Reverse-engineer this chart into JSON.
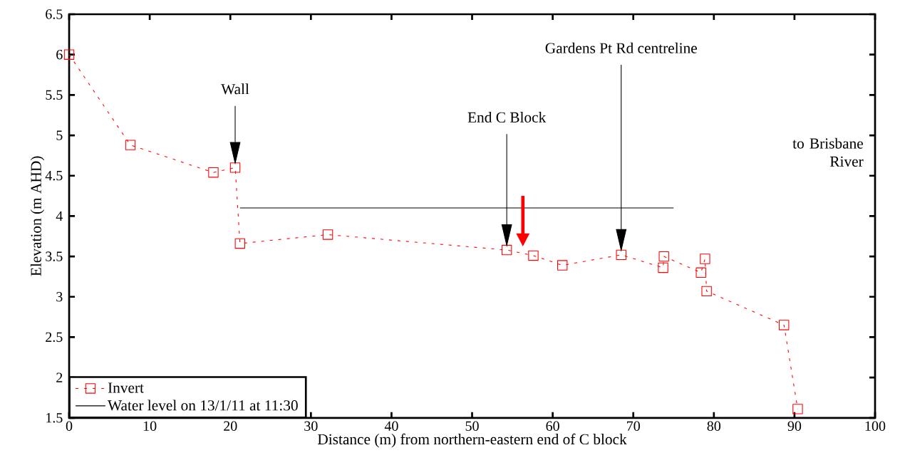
{
  "chart_data": {
    "type": "line",
    "xlabel": "Distance (m) from northern-eastern end of C block",
    "ylabel": "Elevation (m AHD)",
    "xlim": [
      0,
      100
    ],
    "ylim": [
      1.5,
      6.5
    ],
    "xticks": [
      0,
      10,
      20,
      30,
      40,
      50,
      60,
      70,
      80,
      90,
      100
    ],
    "yticks": [
      1.5,
      2,
      2.5,
      3,
      3.5,
      4,
      4.5,
      5,
      5.5,
      6,
      6.5
    ],
    "grid": false,
    "legend": "bottom left",
    "series": [
      {
        "name": "Invert",
        "color": "#ff0000",
        "marker": "square",
        "line_style": "dotted",
        "x": [
          0,
          7.6,
          17.9,
          20.6,
          21.2,
          32.1,
          54.3,
          57.6,
          61.2,
          68.5,
          73.7,
          73.8,
          78.4,
          78.9,
          79.1,
          88.7,
          90.4
        ],
        "values": [
          6.0,
          4.88,
          4.54,
          4.6,
          3.66,
          3.77,
          3.58,
          3.51,
          3.39,
          3.52,
          3.36,
          3.5,
          3.3,
          3.47,
          3.07,
          2.65,
          1.61
        ]
      },
      {
        "name": "Water level on 13/1/11 at 11:30",
        "color": "#000000",
        "marker": "none",
        "line_style": "solid",
        "x": [
          21.2,
          75
        ],
        "values": [
          4.1,
          4.1
        ]
      }
    ],
    "annotations": [
      "Wall",
      "End C Block",
      "Gardens Pt Rd centreline",
      "to Brisbane River"
    ]
  }
}
